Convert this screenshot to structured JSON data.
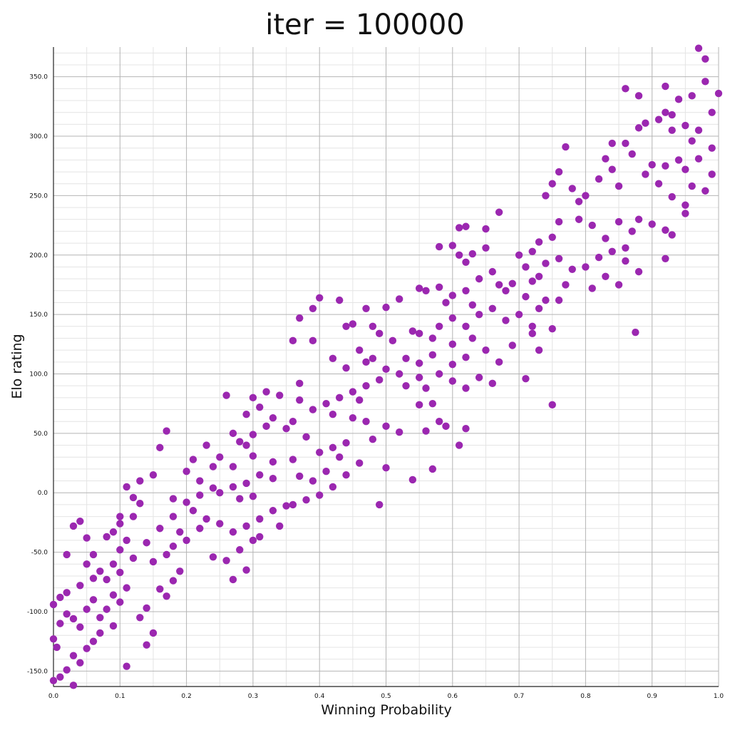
{
  "chart_data": {
    "type": "scatter",
    "title": "iter = 100000",
    "xlabel": "Winning Probability",
    "ylabel": "Elo rating",
    "xlim": [
      0.0,
      1.0
    ],
    "ylim": [
      -163,
      375
    ],
    "xticks": [
      "0.0",
      "0.1",
      "0.2",
      "0.3",
      "0.4",
      "0.5",
      "0.6",
      "0.7",
      "0.8",
      "0.9",
      "1.0"
    ],
    "yticks": [
      "-150.0",
      "-100.0",
      "-50.0",
      "0.0",
      "50.0",
      "100.0",
      "150.0",
      "200.0",
      "250.0",
      "300.0",
      "350.0"
    ],
    "grid": true,
    "point_color": "#9b27b0",
    "points": [
      [
        0.97,
        374
      ],
      [
        0.98,
        365
      ],
      [
        0.98,
        346
      ],
      [
        1.0,
        336
      ],
      [
        0.96,
        334
      ],
      [
        0.86,
        340
      ],
      [
        0.88,
        334
      ],
      [
        0.94,
        331
      ],
      [
        0.92,
        342
      ],
      [
        0.92,
        320
      ],
      [
        0.93,
        318
      ],
      [
        0.95,
        309
      ],
      [
        0.97,
        305
      ],
      [
        0.99,
        320
      ],
      [
        0.91,
        314
      ],
      [
        0.93,
        305
      ],
      [
        0.89,
        311
      ],
      [
        0.88,
        307
      ],
      [
        0.86,
        294
      ],
      [
        0.99,
        290
      ],
      [
        0.96,
        296
      ],
      [
        0.97,
        281
      ],
      [
        0.94,
        280
      ],
      [
        0.95,
        272
      ],
      [
        0.92,
        275
      ],
      [
        0.9,
        276
      ],
      [
        0.87,
        285
      ],
      [
        0.89,
        268
      ],
      [
        0.91,
        260
      ],
      [
        0.96,
        258
      ],
      [
        0.98,
        254
      ],
      [
        0.99,
        268
      ],
      [
        0.93,
        249
      ],
      [
        0.95,
        242
      ],
      [
        0.84,
        294
      ],
      [
        0.83,
        281
      ],
      [
        0.84,
        272
      ],
      [
        0.82,
        264
      ],
      [
        0.85,
        258
      ],
      [
        0.8,
        250
      ],
      [
        0.77,
        291
      ],
      [
        0.76,
        270
      ],
      [
        0.75,
        260
      ],
      [
        0.78,
        256
      ],
      [
        0.79,
        245
      ],
      [
        0.74,
        250
      ],
      [
        0.76,
        228
      ],
      [
        0.79,
        230
      ],
      [
        0.85,
        228
      ],
      [
        0.81,
        225
      ],
      [
        0.83,
        214
      ],
      [
        0.87,
        220
      ],
      [
        0.88,
        230
      ],
      [
        0.9,
        226
      ],
      [
        0.92,
        221
      ],
      [
        0.95,
        235
      ],
      [
        0.93,
        217
      ],
      [
        0.86,
        206
      ],
      [
        0.84,
        203
      ],
      [
        0.82,
        198
      ],
      [
        0.8,
        190
      ],
      [
        0.86,
        195
      ],
      [
        0.88,
        186
      ],
      [
        0.92,
        197
      ],
      [
        0.85,
        175
      ],
      [
        0.81,
        172
      ],
      [
        0.83,
        182
      ],
      [
        0.75,
        215
      ],
      [
        0.73,
        211
      ],
      [
        0.72,
        203
      ],
      [
        0.7,
        200
      ],
      [
        0.71,
        190
      ],
      [
        0.74,
        193
      ],
      [
        0.76,
        197
      ],
      [
        0.78,
        188
      ],
      [
        0.73,
        182
      ],
      [
        0.77,
        175
      ],
      [
        0.72,
        178
      ],
      [
        0.69,
        176
      ],
      [
        0.68,
        170
      ],
      [
        0.71,
        165
      ],
      [
        0.74,
        162
      ],
      [
        0.76,
        162
      ],
      [
        0.73,
        155
      ],
      [
        0.7,
        150
      ],
      [
        0.68,
        145
      ],
      [
        0.72,
        140
      ],
      [
        0.75,
        138
      ],
      [
        0.72,
        134
      ],
      [
        0.69,
        124
      ],
      [
        0.73,
        120
      ],
      [
        0.71,
        96
      ],
      [
        0.75,
        74
      ],
      [
        0.67,
        236
      ],
      [
        0.65,
        222
      ],
      [
        0.62,
        224
      ],
      [
        0.61,
        223
      ],
      [
        0.65,
        206
      ],
      [
        0.63,
        201
      ],
      [
        0.6,
        208
      ],
      [
        0.58,
        207
      ],
      [
        0.61,
        200
      ],
      [
        0.62,
        194
      ],
      [
        0.66,
        186
      ],
      [
        0.64,
        180
      ],
      [
        0.67,
        175
      ],
      [
        0.62,
        170
      ],
      [
        0.6,
        166
      ],
      [
        0.58,
        173
      ],
      [
        0.56,
        170
      ],
      [
        0.55,
        172
      ],
      [
        0.59,
        160
      ],
      [
        0.63,
        158
      ],
      [
        0.66,
        155
      ],
      [
        0.64,
        150
      ],
      [
        0.6,
        147
      ],
      [
        0.62,
        140
      ],
      [
        0.58,
        140
      ],
      [
        0.55,
        134
      ],
      [
        0.57,
        130
      ],
      [
        0.6,
        125
      ],
      [
        0.63,
        130
      ],
      [
        0.65,
        120
      ],
      [
        0.67,
        110
      ],
      [
        0.62,
        114
      ],
      [
        0.6,
        108
      ],
      [
        0.57,
        116
      ],
      [
        0.55,
        109
      ],
      [
        0.53,
        113
      ],
      [
        0.55,
        97
      ],
      [
        0.53,
        90
      ],
      [
        0.56,
        88
      ],
      [
        0.58,
        100
      ],
      [
        0.6,
        94
      ],
      [
        0.62,
        88
      ],
      [
        0.64,
        97
      ],
      [
        0.66,
        92
      ],
      [
        0.57,
        75
      ],
      [
        0.55,
        74
      ],
      [
        0.58,
        60
      ],
      [
        0.59,
        56
      ],
      [
        0.56,
        52
      ],
      [
        0.62,
        54
      ],
      [
        0.61,
        40
      ],
      [
        0.57,
        20
      ],
      [
        0.54,
        11
      ],
      [
        0.52,
        163
      ],
      [
        0.54,
        136
      ],
      [
        0.5,
        156
      ],
      [
        0.47,
        155
      ],
      [
        0.43,
        162
      ],
      [
        0.4,
        164
      ],
      [
        0.39,
        155
      ],
      [
        0.45,
        142
      ],
      [
        0.44,
        140
      ],
      [
        0.48,
        140
      ],
      [
        0.49,
        134
      ],
      [
        0.51,
        128
      ],
      [
        0.46,
        120
      ],
      [
        0.48,
        113
      ],
      [
        0.42,
        113
      ],
      [
        0.44,
        105
      ],
      [
        0.47,
        110
      ],
      [
        0.5,
        104
      ],
      [
        0.52,
        100
      ],
      [
        0.49,
        95
      ],
      [
        0.47,
        90
      ],
      [
        0.45,
        85
      ],
      [
        0.43,
        80
      ],
      [
        0.46,
        78
      ],
      [
        0.41,
        75
      ],
      [
        0.39,
        70
      ],
      [
        0.42,
        66
      ],
      [
        0.45,
        63
      ],
      [
        0.47,
        60
      ],
      [
        0.5,
        56
      ],
      [
        0.52,
        51
      ],
      [
        0.48,
        45
      ],
      [
        0.44,
        42
      ],
      [
        0.42,
        38
      ],
      [
        0.4,
        34
      ],
      [
        0.43,
        30
      ],
      [
        0.46,
        25
      ],
      [
        0.41,
        18
      ],
      [
        0.44,
        15
      ],
      [
        0.42,
        5
      ],
      [
        0.39,
        10
      ],
      [
        0.37,
        14
      ],
      [
        0.36,
        28
      ],
      [
        0.38,
        47
      ],
      [
        0.36,
        60
      ],
      [
        0.35,
        54
      ],
      [
        0.37,
        78
      ],
      [
        0.33,
        63
      ],
      [
        0.34,
        82
      ],
      [
        0.32,
        85
      ],
      [
        0.37,
        92
      ],
      [
        0.3,
        80
      ],
      [
        0.31,
        72
      ],
      [
        0.29,
        66
      ],
      [
        0.32,
        56
      ],
      [
        0.3,
        49
      ],
      [
        0.28,
        43
      ],
      [
        0.27,
        50
      ],
      [
        0.29,
        40
      ],
      [
        0.26,
        82
      ],
      [
        0.3,
        31
      ],
      [
        0.33,
        26
      ],
      [
        0.27,
        22
      ],
      [
        0.31,
        15
      ],
      [
        0.33,
        12
      ],
      [
        0.29,
        8
      ],
      [
        0.27,
        5
      ],
      [
        0.25,
        0
      ],
      [
        0.28,
        -5
      ],
      [
        0.3,
        -3
      ],
      [
        0.35,
        -11
      ],
      [
        0.33,
        -15
      ],
      [
        0.31,
        -22
      ],
      [
        0.29,
        -28
      ],
      [
        0.27,
        -33
      ],
      [
        0.3,
        -40
      ],
      [
        0.28,
        -48
      ],
      [
        0.26,
        -57
      ],
      [
        0.29,
        -65
      ],
      [
        0.27,
        -73
      ],
      [
        0.34,
        -28
      ],
      [
        0.36,
        -10
      ],
      [
        0.38,
        -6
      ],
      [
        0.4,
        -2
      ],
      [
        0.37,
        147
      ],
      [
        0.36,
        128
      ],
      [
        0.39,
        128
      ],
      [
        0.49,
        -10
      ],
      [
        0.5,
        21
      ],
      [
        0.31,
        -37
      ],
      [
        0.25,
        30
      ],
      [
        0.24,
        22
      ],
      [
        0.23,
        40
      ],
      [
        0.21,
        28
      ],
      [
        0.2,
        18
      ],
      [
        0.22,
        10
      ],
      [
        0.24,
        4
      ],
      [
        0.22,
        -2
      ],
      [
        0.2,
        -8
      ],
      [
        0.18,
        -5
      ],
      [
        0.21,
        -15
      ],
      [
        0.23,
        -22
      ],
      [
        0.25,
        -26
      ],
      [
        0.22,
        -30
      ],
      [
        0.19,
        -33
      ],
      [
        0.2,
        -40
      ],
      [
        0.18,
        -45
      ],
      [
        0.17,
        -52
      ],
      [
        0.15,
        -58
      ],
      [
        0.19,
        -66
      ],
      [
        0.18,
        -74
      ],
      [
        0.16,
        -81
      ],
      [
        0.17,
        -87
      ],
      [
        0.14,
        -97
      ],
      [
        0.13,
        -105
      ],
      [
        0.15,
        -118
      ],
      [
        0.14,
        -128
      ],
      [
        0.16,
        38
      ],
      [
        0.17,
        52
      ],
      [
        0.24,
        -54
      ],
      [
        0.15,
        15
      ],
      [
        0.13,
        10
      ],
      [
        0.11,
        5
      ],
      [
        0.12,
        -4
      ],
      [
        0.13,
        -9
      ],
      [
        0.12,
        -20
      ],
      [
        0.1,
        -26
      ],
      [
        0.09,
        -33
      ],
      [
        0.11,
        -40
      ],
      [
        0.1,
        -48
      ],
      [
        0.12,
        -55
      ],
      [
        0.09,
        -60
      ],
      [
        0.1,
        -67
      ],
      [
        0.08,
        -73
      ],
      [
        0.11,
        -80
      ],
      [
        0.09,
        -86
      ],
      [
        0.1,
        -92
      ],
      [
        0.08,
        -98
      ],
      [
        0.07,
        -105
      ],
      [
        0.09,
        -112
      ],
      [
        0.07,
        -118
      ],
      [
        0.06,
        -125
      ],
      [
        0.05,
        -131
      ],
      [
        0.03,
        -137
      ],
      [
        0.04,
        -143
      ],
      [
        0.02,
        -149
      ],
      [
        0.01,
        -155
      ],
      [
        0.0,
        -158
      ],
      [
        0.03,
        -162
      ],
      [
        0.05,
        -38
      ],
      [
        0.03,
        -28
      ],
      [
        0.04,
        -24
      ],
      [
        0.02,
        -52
      ],
      [
        0.06,
        -52
      ],
      [
        0.05,
        -60
      ],
      [
        0.07,
        -66
      ],
      [
        0.06,
        -72
      ],
      [
        0.04,
        -78
      ],
      [
        0.02,
        -84
      ],
      [
        0.01,
        -88
      ],
      [
        0.0,
        -94
      ],
      [
        0.02,
        -102
      ],
      [
        0.03,
        -106
      ],
      [
        0.01,
        -110
      ],
      [
        0.0,
        -123
      ],
      [
        0.005,
        -130
      ],
      [
        0.04,
        -113
      ],
      [
        0.05,
        -98
      ],
      [
        0.06,
        -90
      ],
      [
        0.11,
        -146
      ],
      [
        0.08,
        -37
      ],
      [
        0.1,
        -20
      ],
      [
        0.14,
        -42
      ],
      [
        0.16,
        -30
      ],
      [
        0.18,
        -20
      ],
      [
        0.875,
        135
      ]
    ]
  }
}
